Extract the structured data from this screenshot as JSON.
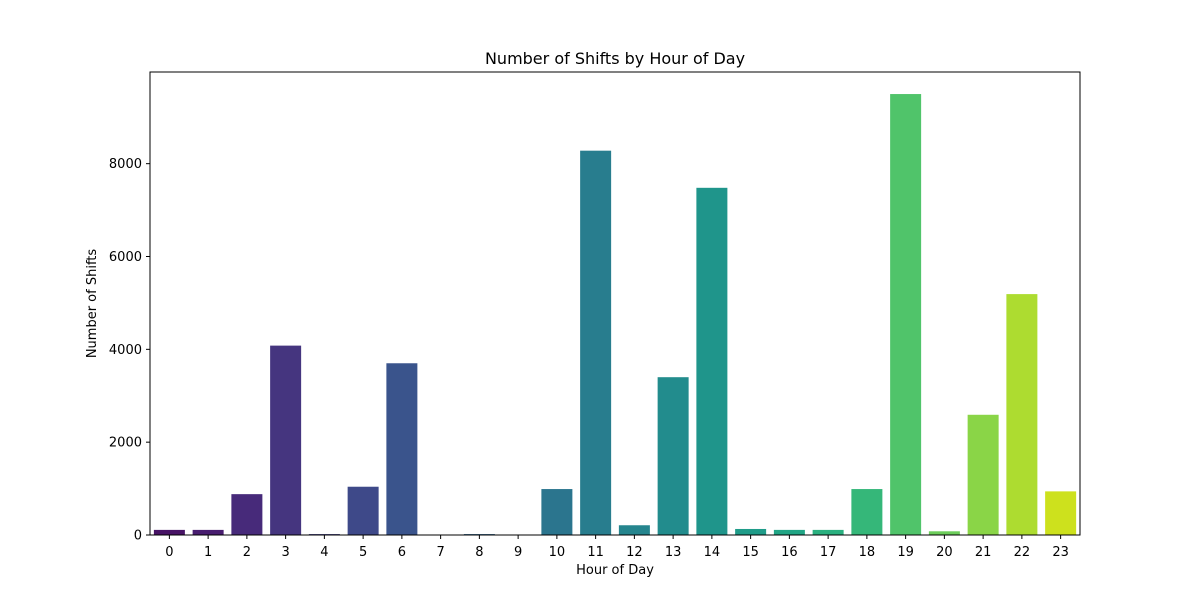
{
  "chart_data": {
    "type": "bar",
    "title": "Number of Shifts by Hour of Day",
    "xlabel": "Hour of Day",
    "ylabel": "Number of Shifts",
    "categories": [
      "0",
      "1",
      "2",
      "3",
      "4",
      "5",
      "6",
      "7",
      "8",
      "9",
      "10",
      "11",
      "12",
      "13",
      "14",
      "15",
      "16",
      "17",
      "18",
      "19",
      "20",
      "21",
      "22",
      "23"
    ],
    "values": [
      110,
      110,
      880,
      4080,
      20,
      1040,
      3700,
      0,
      20,
      0,
      990,
      8280,
      210,
      3400,
      7480,
      130,
      110,
      110,
      990,
      9500,
      80,
      2590,
      5190,
      940
    ],
    "ylim": [
      0,
      9975
    ],
    "yticks": [
      0,
      2000,
      4000,
      6000,
      8000
    ],
    "ytick_labels": [
      "0",
      "2000",
      "4000",
      "6000",
      "8000"
    ],
    "grid": false,
    "legend": "none",
    "colors": [
      "#471365",
      "#481d6f",
      "#472a7a",
      "#45357f",
      "#424086",
      "#3e4989",
      "#3a548c",
      "#365d8d",
      "#32658e",
      "#2e6d8e",
      "#2b758e",
      "#287d8e",
      "#25858e",
      "#228c8d",
      "#1f958b",
      "#1f9c89",
      "#21a585",
      "#2ab07f",
      "#35b779",
      "#50c46a",
      "#6ccd5a",
      "#8ad547",
      "#addc30",
      "#cde11d"
    ]
  }
}
